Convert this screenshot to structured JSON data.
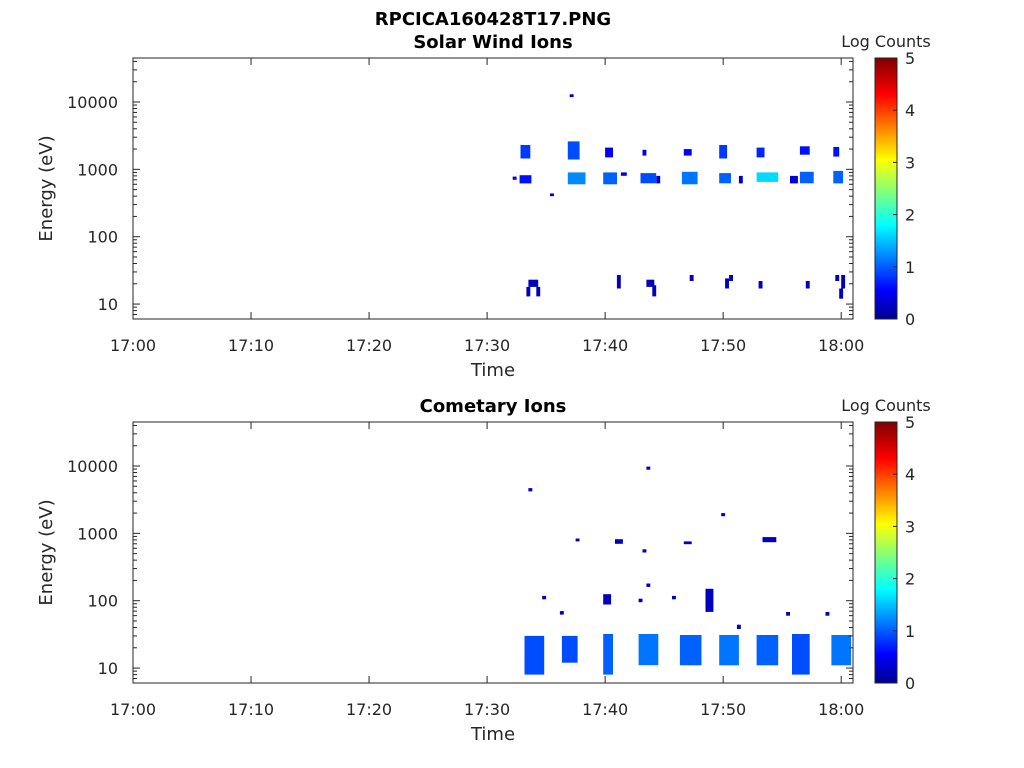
{
  "figure": {
    "filename": "RPCICA160428T17.PNG"
  },
  "chart_data": [
    {
      "type": "heatmap",
      "title": "Solar Wind Ions",
      "xlabel": "Time",
      "ylabel": "Energy (eV)",
      "x_range": [
        "17:00",
        "18:01"
      ],
      "y_scale": "log",
      "y_range": [
        6,
        45000
      ],
      "x_ticks": [
        "17:00",
        "17:10",
        "17:20",
        "17:30",
        "17:40",
        "17:50",
        "18:00"
      ],
      "y_ticks": [
        "10",
        "100",
        "1000",
        "10000"
      ],
      "colorbar": {
        "label": "Log Counts",
        "range": [
          0,
          5
        ],
        "ticks": [
          "0",
          "1",
          "2",
          "3",
          "4",
          "5"
        ]
      },
      "blobs": [
        {
          "t0": "17:32:50",
          "t1": "17:33:40",
          "e0": 1450,
          "e1": 2300,
          "v": 0.9
        },
        {
          "t0": "17:32:45",
          "t1": "17:33:45",
          "e0": 620,
          "e1": 820,
          "v": 0.7
        },
        {
          "t0": "17:32:10",
          "t1": "17:32:30",
          "e0": 700,
          "e1": 780,
          "v": 0.5
        },
        {
          "t0": "17:35:20",
          "t1": "17:35:40",
          "e0": 400,
          "e1": 440,
          "v": 0.3
        },
        {
          "t0": "17:36:50",
          "t1": "17:37:50",
          "e0": 1400,
          "e1": 2600,
          "v": 1.0
        },
        {
          "t0": "17:36:50",
          "t1": "17:38:20",
          "e0": 600,
          "e1": 900,
          "v": 1.3
        },
        {
          "t0": "17:37:00",
          "t1": "17:37:20",
          "e0": 11800,
          "e1": 13000,
          "v": 0.3
        },
        {
          "t0": "17:40:00",
          "t1": "17:40:40",
          "e0": 1500,
          "e1": 2100,
          "v": 0.6
        },
        {
          "t0": "17:39:50",
          "t1": "17:41:00",
          "e0": 600,
          "e1": 900,
          "v": 1.1
        },
        {
          "t0": "17:41:20",
          "t1": "17:41:50",
          "e0": 800,
          "e1": 900,
          "v": 0.5
        },
        {
          "t0": "17:43:10",
          "t1": "17:43:30",
          "e0": 1600,
          "e1": 1950,
          "v": 0.5
        },
        {
          "t0": "17:43:00",
          "t1": "17:44:20",
          "e0": 620,
          "e1": 880,
          "v": 1.0
        },
        {
          "t0": "17:44:20",
          "t1": "17:44:40",
          "e0": 620,
          "e1": 800,
          "v": 0.4
        },
        {
          "t0": "17:46:40",
          "t1": "17:47:20",
          "e0": 1600,
          "e1": 2000,
          "v": 0.6
        },
        {
          "t0": "17:46:30",
          "t1": "17:47:50",
          "e0": 600,
          "e1": 920,
          "v": 1.2
        },
        {
          "t0": "17:49:40",
          "t1": "17:50:20",
          "e0": 1450,
          "e1": 2300,
          "v": 0.9
        },
        {
          "t0": "17:49:40",
          "t1": "17:50:40",
          "e0": 620,
          "e1": 880,
          "v": 1.1
        },
        {
          "t0": "17:51:20",
          "t1": "17:51:40",
          "e0": 620,
          "e1": 800,
          "v": 0.4
        },
        {
          "t0": "17:52:50",
          "t1": "17:53:30",
          "e0": 1500,
          "e1": 2100,
          "v": 0.8
        },
        {
          "t0": "17:52:50",
          "t1": "17:54:40",
          "e0": 650,
          "e1": 900,
          "v": 1.7
        },
        {
          "t0": "17:55:40",
          "t1": "17:56:20",
          "e0": 620,
          "e1": 800,
          "v": 0.4
        },
        {
          "t0": "17:56:30",
          "t1": "17:57:20",
          "e0": 1650,
          "e1": 2200,
          "v": 0.7
        },
        {
          "t0": "17:56:30",
          "t1": "17:57:40",
          "e0": 620,
          "e1": 920,
          "v": 1.1
        },
        {
          "t0": "17:59:20",
          "t1": "17:59:50",
          "e0": 1550,
          "e1": 2150,
          "v": 0.7
        },
        {
          "t0": "17:59:20",
          "t1": "18:00:10",
          "e0": 620,
          "e1": 950,
          "v": 1.1
        },
        {
          "t0": "17:33:30",
          "t1": "17:34:20",
          "e0": 18,
          "e1": 23,
          "v": 0.3
        },
        {
          "t0": "17:33:20",
          "t1": "17:33:40",
          "e0": 13,
          "e1": 18,
          "v": 0.3
        },
        {
          "t0": "17:34:10",
          "t1": "17:34:30",
          "e0": 13,
          "e1": 18,
          "v": 0.3
        },
        {
          "t0": "17:41:00",
          "t1": "17:41:20",
          "e0": 17,
          "e1": 27,
          "v": 0.3
        },
        {
          "t0": "17:43:30",
          "t1": "17:44:10",
          "e0": 18,
          "e1": 23,
          "v": 0.3
        },
        {
          "t0": "17:44:00",
          "t1": "17:44:20",
          "e0": 13,
          "e1": 19,
          "v": 0.3
        },
        {
          "t0": "17:47:10",
          "t1": "17:47:30",
          "e0": 22,
          "e1": 27,
          "v": 0.3
        },
        {
          "t0": "17:50:10",
          "t1": "17:50:30",
          "e0": 17,
          "e1": 24,
          "v": 0.3
        },
        {
          "t0": "17:50:30",
          "t1": "17:50:50",
          "e0": 22,
          "e1": 27,
          "v": 0.3
        },
        {
          "t0": "17:53:00",
          "t1": "17:53:20",
          "e0": 17,
          "e1": 22,
          "v": 0.3
        },
        {
          "t0": "17:57:00",
          "t1": "17:57:20",
          "e0": 17,
          "e1": 22,
          "v": 0.3
        },
        {
          "t0": "17:59:30",
          "t1": "17:59:50",
          "e0": 22,
          "e1": 27,
          "v": 0.3
        },
        {
          "t0": "18:00:00",
          "t1": "18:00:20",
          "e0": 17,
          "e1": 27,
          "v": 0.3
        },
        {
          "t0": "17:59:50",
          "t1": "18:00:10",
          "e0": 12,
          "e1": 17,
          "v": 0.3
        }
      ]
    },
    {
      "type": "heatmap",
      "title": "Cometary Ions",
      "xlabel": "Time",
      "ylabel": "Energy (eV)",
      "x_range": [
        "17:00",
        "18:01"
      ],
      "y_scale": "log",
      "y_range": [
        6,
        45000
      ],
      "x_ticks": [
        "17:00",
        "17:10",
        "17:20",
        "17:30",
        "17:40",
        "17:50",
        "18:00"
      ],
      "y_ticks": [
        "10",
        "100",
        "1000",
        "10000"
      ],
      "colorbar": {
        "label": "Log Counts",
        "range": [
          0,
          5
        ],
        "ticks": [
          "0",
          "1",
          "2",
          "3",
          "4",
          "5"
        ]
      },
      "blobs": [
        {
          "t0": "17:33:10",
          "t1": "17:34:50",
          "e0": 8,
          "e1": 30,
          "v": 1.0
        },
        {
          "t0": "17:36:20",
          "t1": "17:37:40",
          "e0": 12,
          "e1": 30,
          "v": 1.0
        },
        {
          "t0": "17:39:50",
          "t1": "17:40:40",
          "e0": 8,
          "e1": 32,
          "v": 1.1
        },
        {
          "t0": "17:42:50",
          "t1": "17:44:30",
          "e0": 11,
          "e1": 32,
          "v": 1.2
        },
        {
          "t0": "17:46:20",
          "t1": "17:48:10",
          "e0": 11,
          "e1": 31,
          "v": 1.1
        },
        {
          "t0": "17:49:40",
          "t1": "17:51:20",
          "e0": 11,
          "e1": 31,
          "v": 1.2
        },
        {
          "t0": "17:52:50",
          "t1": "17:54:40",
          "e0": 11,
          "e1": 31,
          "v": 1.1
        },
        {
          "t0": "17:55:50",
          "t1": "17:57:20",
          "e0": 8,
          "e1": 32,
          "v": 1.0
        },
        {
          "t0": "17:59:10",
          "t1": "18:00:50",
          "e0": 11,
          "e1": 31,
          "v": 1.2
        },
        {
          "t0": "17:33:30",
          "t1": "17:33:50",
          "e0": 4200,
          "e1": 4700,
          "v": 0.3
        },
        {
          "t0": "17:43:30",
          "t1": "17:43:50",
          "e0": 8800,
          "e1": 9800,
          "v": 0.3
        },
        {
          "t0": "17:49:50",
          "t1": "17:50:10",
          "e0": 1800,
          "e1": 2000,
          "v": 0.3
        },
        {
          "t0": "17:37:30",
          "t1": "17:37:50",
          "e0": 760,
          "e1": 840,
          "v": 0.3
        },
        {
          "t0": "17:40:50",
          "t1": "17:41:30",
          "e0": 700,
          "e1": 820,
          "v": 0.3
        },
        {
          "t0": "17:43:10",
          "t1": "17:43:30",
          "e0": 520,
          "e1": 580,
          "v": 0.3
        },
        {
          "t0": "17:46:40",
          "t1": "17:47:20",
          "e0": 690,
          "e1": 760,
          "v": 0.3
        },
        {
          "t0": "17:53:20",
          "t1": "17:54:30",
          "e0": 740,
          "e1": 880,
          "v": 0.3
        },
        {
          "t0": "17:34:40",
          "t1": "17:35:00",
          "e0": 105,
          "e1": 118,
          "v": 0.3
        },
        {
          "t0": "17:36:10",
          "t1": "17:36:30",
          "e0": 62,
          "e1": 70,
          "v": 0.3
        },
        {
          "t0": "17:39:50",
          "t1": "17:40:30",
          "e0": 88,
          "e1": 125,
          "v": 0.3
        },
        {
          "t0": "17:43:30",
          "t1": "17:43:50",
          "e0": 160,
          "e1": 180,
          "v": 0.3
        },
        {
          "t0": "17:42:50",
          "t1": "17:43:10",
          "e0": 95,
          "e1": 107,
          "v": 0.3
        },
        {
          "t0": "17:45:40",
          "t1": "17:46:00",
          "e0": 105,
          "e1": 118,
          "v": 0.3
        },
        {
          "t0": "17:48:30",
          "t1": "17:49:10",
          "e0": 68,
          "e1": 150,
          "v": 0.3
        },
        {
          "t0": "17:51:10",
          "t1": "17:51:30",
          "e0": 38,
          "e1": 44,
          "v": 0.3
        },
        {
          "t0": "17:55:20",
          "t1": "17:55:40",
          "e0": 60,
          "e1": 68,
          "v": 0.3
        },
        {
          "t0": "17:58:40",
          "t1": "17:59:00",
          "e0": 60,
          "e1": 68,
          "v": 0.3
        }
      ]
    }
  ]
}
